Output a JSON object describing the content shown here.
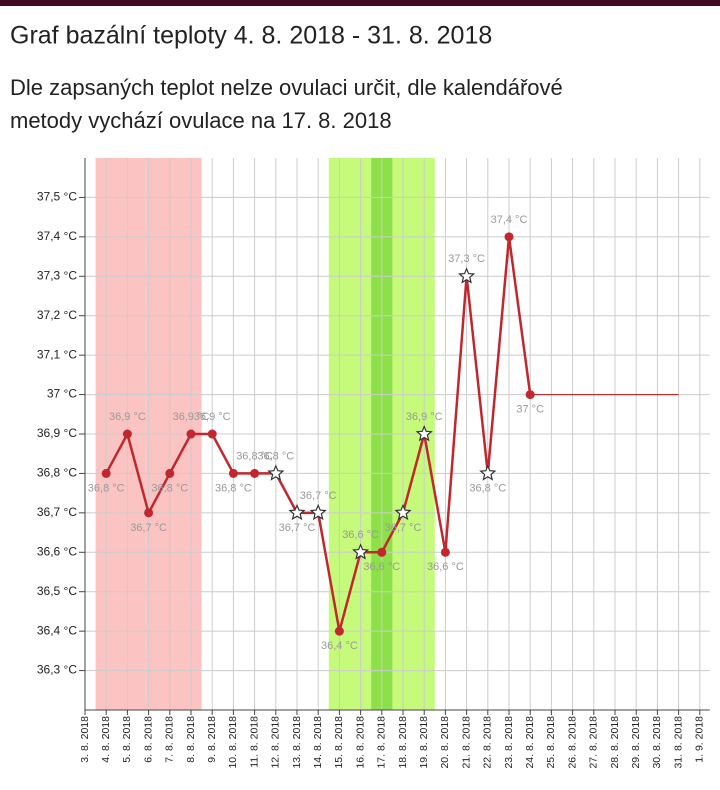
{
  "chart_data": {
    "type": "line",
    "title": "Graf bazální teploty 4. 8. 2018 - 31. 8. 2018",
    "subtitle": [
      "Dle zapsaných teplot nelze ovulaci určit, dle kalendářové",
      "metody vychází ovulace na 17. 8. 2018"
    ],
    "categories": [
      "3. 8. 2018",
      "4. 8. 2018",
      "5. 8. 2018",
      "6. 8. 2018",
      "7. 8. 2018",
      "8. 8. 2018",
      "9. 8. 2018",
      "10. 8. 2018",
      "11. 8. 2018",
      "12. 8. 2018",
      "13. 8. 2018",
      "14. 8. 2018",
      "15. 8. 2018",
      "16. 8. 2018",
      "17. 8. 2018",
      "18. 8. 2018",
      "19. 8. 2018",
      "20. 8. 2018",
      "21. 8. 2018",
      "22. 8. 2018",
      "23. 8. 2018",
      "24. 8. 2018",
      "25. 8. 2018",
      "26. 8. 2018",
      "27. 8. 2018",
      "28. 8. 2018",
      "29. 8. 2018",
      "30. 8. 2018",
      "31. 8. 2018",
      "1. 9. 2018"
    ],
    "series": [
      {
        "color": "#c1272d",
        "values": [
          null,
          36.8,
          36.9,
          36.7,
          36.8,
          36.9,
          36.9,
          36.8,
          36.8,
          36.8,
          36.7,
          36.7,
          36.4,
          36.6,
          36.6,
          36.7,
          36.9,
          36.6,
          37.3,
          36.8,
          37.4,
          37,
          null,
          null,
          null,
          null,
          null,
          null,
          null,
          null
        ],
        "value_labels": [
          null,
          "36,8 °C",
          "36,9 °C",
          "36,7 °C",
          "36,8 °C",
          "36,9 °C",
          "36,9 °C",
          "36,8 °C",
          "36,8 °C",
          "36,8 °C",
          "36,7 °C",
          "36,7 °C",
          "36,4 °C",
          "36,6 °C",
          "36,6 °C",
          "36,7 °C",
          "36,9 °C",
          "36,6 °C",
          "37,3 °C",
          "36,8 °C",
          "37,4 °C",
          "37 °C",
          null,
          null,
          null,
          null,
          null,
          null,
          null,
          null
        ],
        "markers": [
          null,
          "dot",
          "dot",
          "dot",
          "dot",
          "dot",
          "dot",
          "dot",
          "dot",
          "star",
          "star",
          "star",
          "dot",
          "star",
          "dot",
          "star",
          "star",
          "dot",
          "star",
          "star",
          "dot",
          "dot",
          null,
          null,
          null,
          null,
          null,
          null,
          null,
          null
        ]
      },
      {
        "color": "#c1272d",
        "values": [
          null,
          null,
          null,
          null,
          null,
          null,
          null,
          null,
          null,
          null,
          null,
          null,
          null,
          null,
          null,
          null,
          null,
          null,
          null,
          null,
          null,
          37,
          37,
          37,
          37,
          37,
          37,
          37,
          37,
          null
        ]
      }
    ],
    "bands": [
      {
        "from_index": 1,
        "to_index": 5,
        "color": "#fcc3c3"
      },
      {
        "from_index": 12,
        "to_index": 16,
        "color": "#c6fa7a"
      },
      {
        "from_index": 14,
        "to_index": 14,
        "color": "#8ee04a"
      }
    ],
    "ylim": [
      36.2,
      37.6
    ],
    "yticks": [
      {
        "value": 36.3,
        "label": "36,3 °C"
      },
      {
        "value": 36.4,
        "label": "36,4 °C"
      },
      {
        "value": 36.5,
        "label": "36,5 °C"
      },
      {
        "value": 36.6,
        "label": "36,6 °C"
      },
      {
        "value": 36.7,
        "label": "36,7 °C"
      },
      {
        "value": 36.8,
        "label": "36,8 °C"
      },
      {
        "value": 36.9,
        "label": "36,9 °C"
      },
      {
        "value": 37,
        "label": "37 °C"
      },
      {
        "value": 37.1,
        "label": "37,1 °C"
      },
      {
        "value": 37.2,
        "label": "37,2 °C"
      },
      {
        "value": 37.3,
        "label": "37,3 °C"
      },
      {
        "value": 37.4,
        "label": "37,4 °C"
      },
      {
        "value": 37.5,
        "label": "37,5 °C"
      }
    ],
    "grid": true
  }
}
